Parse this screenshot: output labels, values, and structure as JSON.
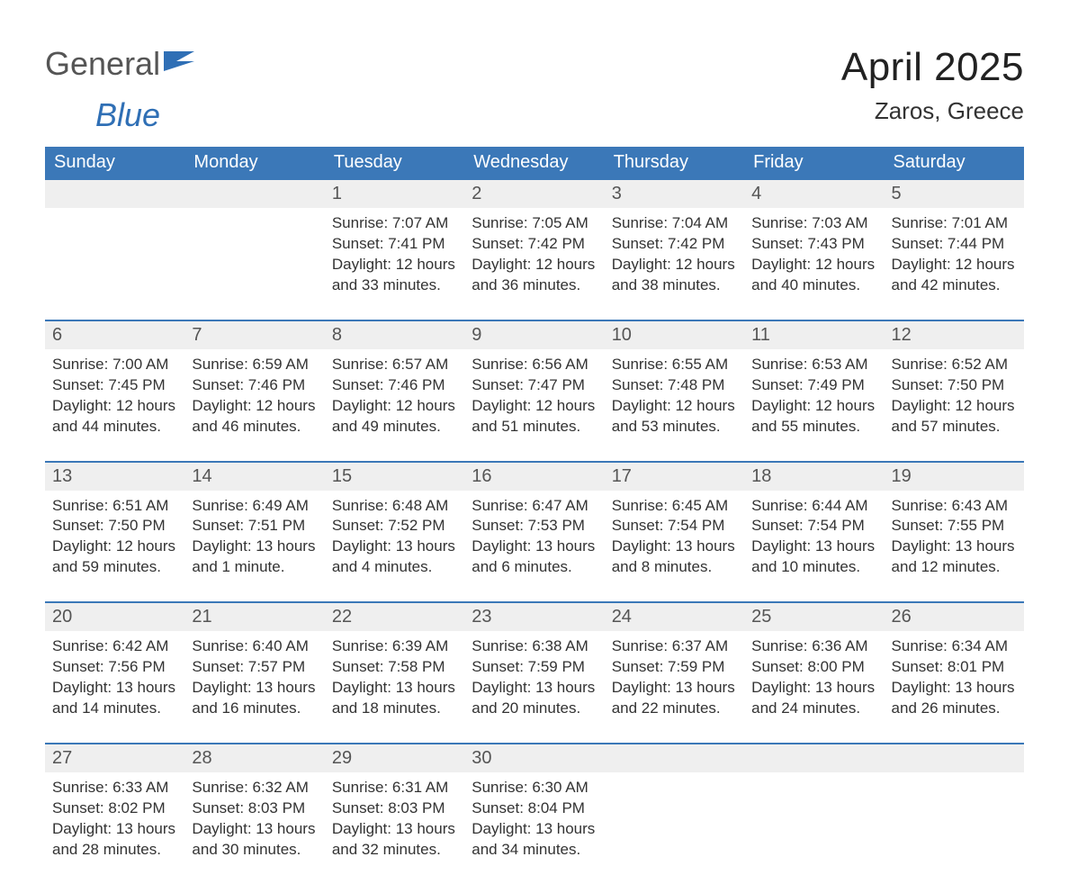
{
  "brand": {
    "word1": "General",
    "word2": "Blue",
    "logo_color": "#2f6fb5"
  },
  "header": {
    "month_title": "April 2025",
    "location": "Zaros, Greece"
  },
  "style": {
    "header_bg": "#3b78b8",
    "header_text": "#ffffff",
    "daynum_bg": "#efefef",
    "daynum_text": "#555555",
    "border_color": "#3b78b8",
    "body_text": "#333333",
    "page_bg": "#ffffff",
    "th_fontsize": 20,
    "daynum_fontsize": 20,
    "cell_fontsize": 17,
    "title_fontsize": 44,
    "location_fontsize": 26
  },
  "day_headers": [
    "Sunday",
    "Monday",
    "Tuesday",
    "Wednesday",
    "Thursday",
    "Friday",
    "Saturday"
  ],
  "weeks": [
    [
      null,
      null,
      {
        "num": "1",
        "sunrise": "Sunrise: 7:07 AM",
        "sunset": "Sunset: 7:41 PM",
        "daylight": "Daylight: 12 hours and 33 minutes."
      },
      {
        "num": "2",
        "sunrise": "Sunrise: 7:05 AM",
        "sunset": "Sunset: 7:42 PM",
        "daylight": "Daylight: 12 hours and 36 minutes."
      },
      {
        "num": "3",
        "sunrise": "Sunrise: 7:04 AM",
        "sunset": "Sunset: 7:42 PM",
        "daylight": "Daylight: 12 hours and 38 minutes."
      },
      {
        "num": "4",
        "sunrise": "Sunrise: 7:03 AM",
        "sunset": "Sunset: 7:43 PM",
        "daylight": "Daylight: 12 hours and 40 minutes."
      },
      {
        "num": "5",
        "sunrise": "Sunrise: 7:01 AM",
        "sunset": "Sunset: 7:44 PM",
        "daylight": "Daylight: 12 hours and 42 minutes."
      }
    ],
    [
      {
        "num": "6",
        "sunrise": "Sunrise: 7:00 AM",
        "sunset": "Sunset: 7:45 PM",
        "daylight": "Daylight: 12 hours and 44 minutes."
      },
      {
        "num": "7",
        "sunrise": "Sunrise: 6:59 AM",
        "sunset": "Sunset: 7:46 PM",
        "daylight": "Daylight: 12 hours and 46 minutes."
      },
      {
        "num": "8",
        "sunrise": "Sunrise: 6:57 AM",
        "sunset": "Sunset: 7:46 PM",
        "daylight": "Daylight: 12 hours and 49 minutes."
      },
      {
        "num": "9",
        "sunrise": "Sunrise: 6:56 AM",
        "sunset": "Sunset: 7:47 PM",
        "daylight": "Daylight: 12 hours and 51 minutes."
      },
      {
        "num": "10",
        "sunrise": "Sunrise: 6:55 AM",
        "sunset": "Sunset: 7:48 PM",
        "daylight": "Daylight: 12 hours and 53 minutes."
      },
      {
        "num": "11",
        "sunrise": "Sunrise: 6:53 AM",
        "sunset": "Sunset: 7:49 PM",
        "daylight": "Daylight: 12 hours and 55 minutes."
      },
      {
        "num": "12",
        "sunrise": "Sunrise: 6:52 AM",
        "sunset": "Sunset: 7:50 PM",
        "daylight": "Daylight: 12 hours and 57 minutes."
      }
    ],
    [
      {
        "num": "13",
        "sunrise": "Sunrise: 6:51 AM",
        "sunset": "Sunset: 7:50 PM",
        "daylight": "Daylight: 12 hours and 59 minutes."
      },
      {
        "num": "14",
        "sunrise": "Sunrise: 6:49 AM",
        "sunset": "Sunset: 7:51 PM",
        "daylight": "Daylight: 13 hours and 1 minute."
      },
      {
        "num": "15",
        "sunrise": "Sunrise: 6:48 AM",
        "sunset": "Sunset: 7:52 PM",
        "daylight": "Daylight: 13 hours and 4 minutes."
      },
      {
        "num": "16",
        "sunrise": "Sunrise: 6:47 AM",
        "sunset": "Sunset: 7:53 PM",
        "daylight": "Daylight: 13 hours and 6 minutes."
      },
      {
        "num": "17",
        "sunrise": "Sunrise: 6:45 AM",
        "sunset": "Sunset: 7:54 PM",
        "daylight": "Daylight: 13 hours and 8 minutes."
      },
      {
        "num": "18",
        "sunrise": "Sunrise: 6:44 AM",
        "sunset": "Sunset: 7:54 PM",
        "daylight": "Daylight: 13 hours and 10 minutes."
      },
      {
        "num": "19",
        "sunrise": "Sunrise: 6:43 AM",
        "sunset": "Sunset: 7:55 PM",
        "daylight": "Daylight: 13 hours and 12 minutes."
      }
    ],
    [
      {
        "num": "20",
        "sunrise": "Sunrise: 6:42 AM",
        "sunset": "Sunset: 7:56 PM",
        "daylight": "Daylight: 13 hours and 14 minutes."
      },
      {
        "num": "21",
        "sunrise": "Sunrise: 6:40 AM",
        "sunset": "Sunset: 7:57 PM",
        "daylight": "Daylight: 13 hours and 16 minutes."
      },
      {
        "num": "22",
        "sunrise": "Sunrise: 6:39 AM",
        "sunset": "Sunset: 7:58 PM",
        "daylight": "Daylight: 13 hours and 18 minutes."
      },
      {
        "num": "23",
        "sunrise": "Sunrise: 6:38 AM",
        "sunset": "Sunset: 7:59 PM",
        "daylight": "Daylight: 13 hours and 20 minutes."
      },
      {
        "num": "24",
        "sunrise": "Sunrise: 6:37 AM",
        "sunset": "Sunset: 7:59 PM",
        "daylight": "Daylight: 13 hours and 22 minutes."
      },
      {
        "num": "25",
        "sunrise": "Sunrise: 6:36 AM",
        "sunset": "Sunset: 8:00 PM",
        "daylight": "Daylight: 13 hours and 24 minutes."
      },
      {
        "num": "26",
        "sunrise": "Sunrise: 6:34 AM",
        "sunset": "Sunset: 8:01 PM",
        "daylight": "Daylight: 13 hours and 26 minutes."
      }
    ],
    [
      {
        "num": "27",
        "sunrise": "Sunrise: 6:33 AM",
        "sunset": "Sunset: 8:02 PM",
        "daylight": "Daylight: 13 hours and 28 minutes."
      },
      {
        "num": "28",
        "sunrise": "Sunrise: 6:32 AM",
        "sunset": "Sunset: 8:03 PM",
        "daylight": "Daylight: 13 hours and 30 minutes."
      },
      {
        "num": "29",
        "sunrise": "Sunrise: 6:31 AM",
        "sunset": "Sunset: 8:03 PM",
        "daylight": "Daylight: 13 hours and 32 minutes."
      },
      {
        "num": "30",
        "sunrise": "Sunrise: 6:30 AM",
        "sunset": "Sunset: 8:04 PM",
        "daylight": "Daylight: 13 hours and 34 minutes."
      },
      null,
      null,
      null
    ]
  ]
}
